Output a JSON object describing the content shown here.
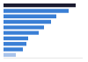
{
  "chart_data": {
    "type": "bar",
    "orientation": "horizontal",
    "categories": [
      null,
      null,
      null,
      null,
      null,
      null,
      null,
      null,
      null,
      null
    ],
    "values": [
      82,
      74,
      60,
      54,
      46,
      40,
      28,
      26,
      22,
      14
    ],
    "colors": [
      "#1b1b2f",
      "#3a7fd5",
      "#3a7fd5",
      "#3a7fd5",
      "#3a7fd5",
      "#3a7fd5",
      "#3a7fd5",
      "#3a7fd5",
      "#3a7fd5",
      "#a9c4eb"
    ],
    "xlim": [
      0,
      90
    ],
    "grid": false,
    "tick_labels": false
  }
}
